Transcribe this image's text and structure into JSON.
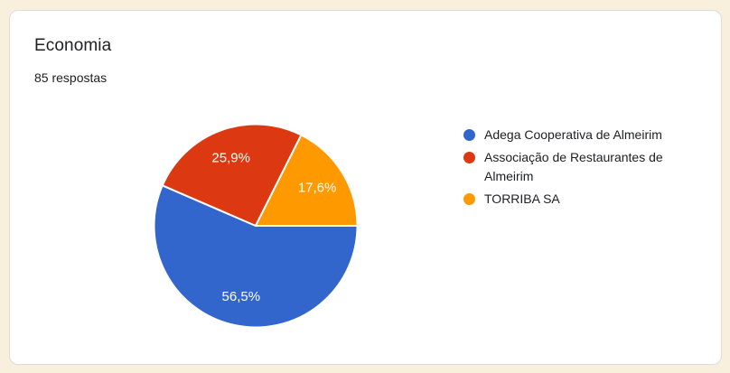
{
  "theme": {
    "page_background": "#F8EFDC",
    "card_background": "#FFFFFF",
    "card_border": "#DADCE0",
    "text_color": "#202124",
    "pie_label_color": "#FFFFFF"
  },
  "chart_data": {
    "type": "pie",
    "title": "Economia",
    "subtitle": "85 respostas",
    "total_responses": 85,
    "legend_position": "right",
    "rotation_deg_clockwise_from_east": 0,
    "slices": [
      {
        "label": "Adega Cooperativa de Almeirim",
        "percent": 56.5,
        "percent_label": "56,5%",
        "color": "#3366CC"
      },
      {
        "label": "Associação de Restaurantes de Almeirim",
        "percent": 25.9,
        "percent_label": "25,9%",
        "color": "#DC3912"
      },
      {
        "label": "TORRIBA SA",
        "percent": 17.6,
        "percent_label": "17,6%",
        "color": "#FF9900"
      }
    ]
  }
}
